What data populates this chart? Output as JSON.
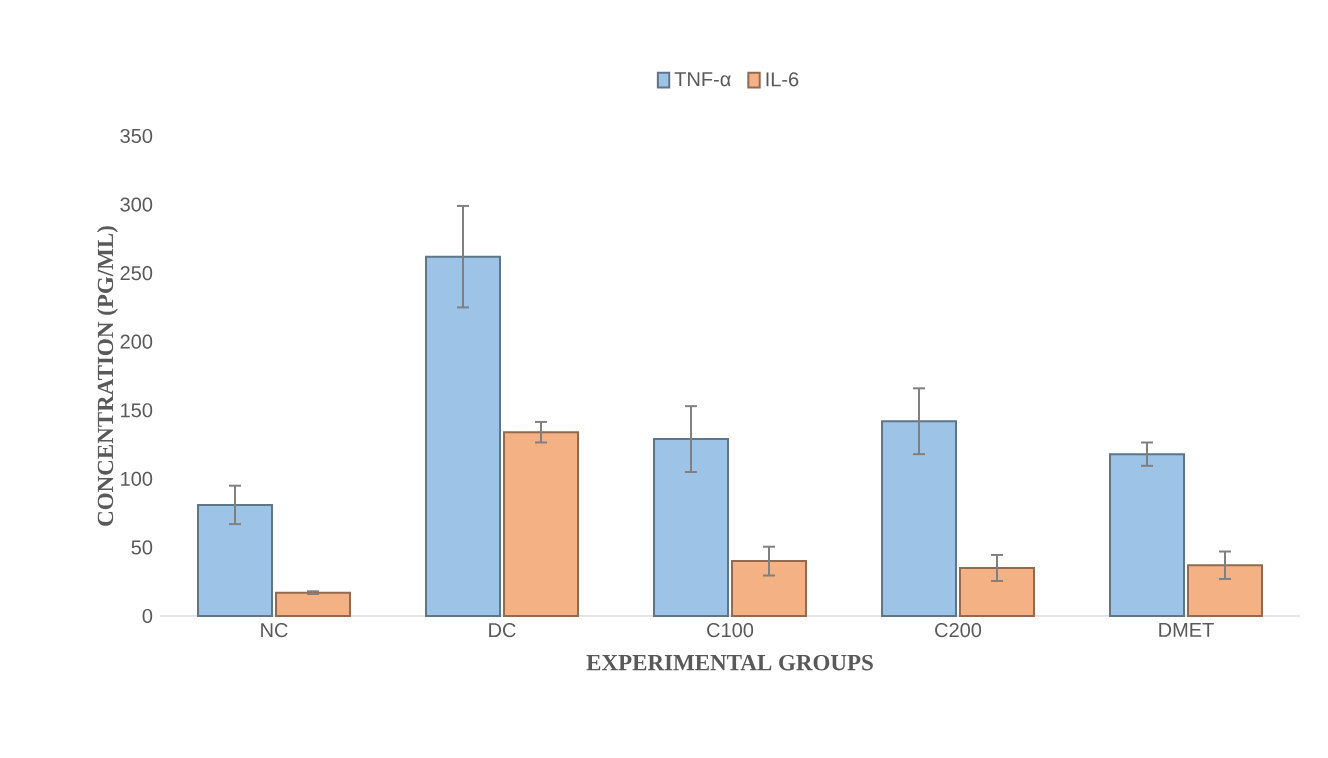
{
  "chart_data": {
    "type": "bar",
    "xlabel": "EXPERIMENTAL GROUPS",
    "ylabel": "CONCENTRATION (PG/ML)",
    "categories": [
      "NC",
      "DC",
      "C100",
      "C200",
      "DMET"
    ],
    "series": [
      {
        "name": "TNF-α",
        "color": "#9dc3e6",
        "values": [
          81,
          262,
          129,
          142,
          118
        ],
        "errors": [
          14,
          37,
          24,
          24,
          8.5
        ]
      },
      {
        "name": "IL-6",
        "color": "#f4b183",
        "values": [
          17,
          134,
          40,
          35,
          37
        ],
        "errors": [
          1,
          7.5,
          10.5,
          9.5,
          10
        ]
      }
    ],
    "ylim": [
      0,
      350
    ],
    "yticks": [
      0,
      50,
      100,
      150,
      200,
      250,
      300,
      350
    ],
    "grid": false,
    "legend": "top"
  }
}
